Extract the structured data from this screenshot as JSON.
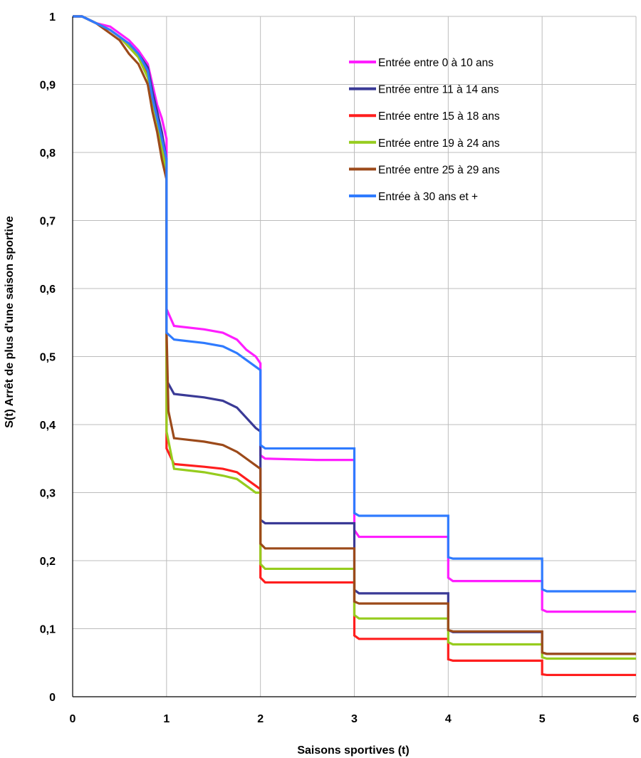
{
  "chart_data": {
    "type": "line",
    "title": "",
    "xlabel": "Saisons sportives (t)",
    "ylabel": "S(t) Arrêt de plus d'une saison sportive",
    "xlim": [
      0,
      6
    ],
    "ylim": [
      0,
      1
    ],
    "x_ticks": [
      "0",
      "1",
      "2",
      "3",
      "4",
      "5",
      "6"
    ],
    "y_ticks": [
      "0",
      "0,1",
      "0,2",
      "0,3",
      "0,4",
      "0,5",
      "0,6",
      "0,7",
      "0,8",
      "0,9",
      "1"
    ],
    "grid": true,
    "legend_position": "top-right",
    "series": [
      {
        "name": "Entrée entre 0 à 10 ans",
        "color": "#ff1eff",
        "points": [
          [
            0,
            1
          ],
          [
            0.1,
            1
          ],
          [
            0.25,
            0.99
          ],
          [
            0.4,
            0.985
          ],
          [
            0.5,
            0.975
          ],
          [
            0.6,
            0.965
          ],
          [
            0.7,
            0.95
          ],
          [
            0.8,
            0.93
          ],
          [
            0.85,
            0.9
          ],
          [
            0.9,
            0.87
          ],
          [
            0.95,
            0.85
          ],
          [
            1.0,
            0.82
          ],
          [
            1.0,
            0.57
          ],
          [
            1.08,
            0.545
          ],
          [
            1.4,
            0.54
          ],
          [
            1.6,
            0.535
          ],
          [
            1.75,
            0.525
          ],
          [
            1.85,
            0.51
          ],
          [
            1.95,
            0.5
          ],
          [
            2.0,
            0.49
          ],
          [
            2.0,
            0.355
          ],
          [
            2.05,
            0.35
          ],
          [
            2.6,
            0.348
          ],
          [
            3.0,
            0.348
          ],
          [
            3.0,
            0.245
          ],
          [
            3.05,
            0.235
          ],
          [
            4.0,
            0.235
          ],
          [
            4.0,
            0.175
          ],
          [
            4.05,
            0.17
          ],
          [
            5.0,
            0.17
          ],
          [
            5.0,
            0.128
          ],
          [
            5.05,
            0.125
          ],
          [
            6.0,
            0.125
          ]
        ]
      },
      {
        "name": "Entrée entre 11 à 14 ans",
        "color": "#3a3a96",
        "points": [
          [
            0,
            1
          ],
          [
            0.1,
            1
          ],
          [
            0.25,
            0.99
          ],
          [
            0.4,
            0.98
          ],
          [
            0.5,
            0.97
          ],
          [
            0.6,
            0.96
          ],
          [
            0.7,
            0.945
          ],
          [
            0.8,
            0.925
          ],
          [
            0.85,
            0.89
          ],
          [
            0.9,
            0.86
          ],
          [
            0.95,
            0.83
          ],
          [
            1.0,
            0.79
          ],
          [
            1.0,
            0.465
          ],
          [
            1.08,
            0.445
          ],
          [
            1.4,
            0.44
          ],
          [
            1.6,
            0.435
          ],
          [
            1.75,
            0.425
          ],
          [
            1.85,
            0.41
          ],
          [
            1.95,
            0.395
          ],
          [
            2.0,
            0.39
          ],
          [
            2.0,
            0.26
          ],
          [
            2.05,
            0.255
          ],
          [
            3.0,
            0.255
          ],
          [
            3.0,
            0.157
          ],
          [
            3.05,
            0.152
          ],
          [
            4.0,
            0.152
          ],
          [
            4.0,
            0.098
          ],
          [
            4.05,
            0.095
          ],
          [
            5.0,
            0.095
          ],
          [
            5.0,
            0.065
          ],
          [
            5.05,
            0.063
          ],
          [
            6.0,
            0.063
          ]
        ]
      },
      {
        "name": "Entrée entre 15 à 18 ans",
        "color": "#ff1e1e",
        "points": [
          [
            0,
            1
          ],
          [
            0.1,
            1
          ],
          [
            0.25,
            0.99
          ],
          [
            0.4,
            0.98
          ],
          [
            0.5,
            0.97
          ],
          [
            0.6,
            0.955
          ],
          [
            0.7,
            0.94
          ],
          [
            0.8,
            0.915
          ],
          [
            0.85,
            0.88
          ],
          [
            0.9,
            0.85
          ],
          [
            0.95,
            0.81
          ],
          [
            1.0,
            0.77
          ],
          [
            1.0,
            0.365
          ],
          [
            1.08,
            0.342
          ],
          [
            1.4,
            0.338
          ],
          [
            1.6,
            0.335
          ],
          [
            1.75,
            0.33
          ],
          [
            1.85,
            0.32
          ],
          [
            1.95,
            0.31
          ],
          [
            2.0,
            0.305
          ],
          [
            2.0,
            0.175
          ],
          [
            2.05,
            0.168
          ],
          [
            3.0,
            0.168
          ],
          [
            3.0,
            0.09
          ],
          [
            3.05,
            0.085
          ],
          [
            4.0,
            0.085
          ],
          [
            4.0,
            0.055
          ],
          [
            4.05,
            0.053
          ],
          [
            5.0,
            0.053
          ],
          [
            5.0,
            0.033
          ],
          [
            5.05,
            0.032
          ],
          [
            6.0,
            0.032
          ]
        ]
      },
      {
        "name": "Entrée entre 19 à 24 ans",
        "color": "#96cc1e",
        "points": [
          [
            0,
            1
          ],
          [
            0.1,
            1
          ],
          [
            0.25,
            0.99
          ],
          [
            0.4,
            0.98
          ],
          [
            0.5,
            0.97
          ],
          [
            0.6,
            0.955
          ],
          [
            0.7,
            0.94
          ],
          [
            0.8,
            0.91
          ],
          [
            0.85,
            0.875
          ],
          [
            0.9,
            0.845
          ],
          [
            0.95,
            0.805
          ],
          [
            1.0,
            0.77
          ],
          [
            1.0,
            0.39
          ],
          [
            1.08,
            0.335
          ],
          [
            1.4,
            0.33
          ],
          [
            1.6,
            0.325
          ],
          [
            1.75,
            0.32
          ],
          [
            1.85,
            0.31
          ],
          [
            1.95,
            0.3
          ],
          [
            2.0,
            0.3
          ],
          [
            2.0,
            0.195
          ],
          [
            2.05,
            0.188
          ],
          [
            3.0,
            0.188
          ],
          [
            3.0,
            0.12
          ],
          [
            3.05,
            0.115
          ],
          [
            4.0,
            0.115
          ],
          [
            4.0,
            0.08
          ],
          [
            4.05,
            0.077
          ],
          [
            5.0,
            0.077
          ],
          [
            5.0,
            0.058
          ],
          [
            5.05,
            0.056
          ],
          [
            6.0,
            0.056
          ]
        ]
      },
      {
        "name": "Entrée entre 25 à 29 ans",
        "color": "#9c4a1a",
        "points": [
          [
            0,
            1
          ],
          [
            0.1,
            1
          ],
          [
            0.25,
            0.99
          ],
          [
            0.4,
            0.975
          ],
          [
            0.5,
            0.965
          ],
          [
            0.6,
            0.945
          ],
          [
            0.7,
            0.93
          ],
          [
            0.8,
            0.9
          ],
          [
            0.85,
            0.86
          ],
          [
            0.9,
            0.83
          ],
          [
            0.95,
            0.79
          ],
          [
            1.0,
            0.76
          ],
          [
            1.0,
            0.54
          ],
          [
            1.02,
            0.42
          ],
          [
            1.08,
            0.38
          ],
          [
            1.4,
            0.375
          ],
          [
            1.6,
            0.37
          ],
          [
            1.75,
            0.36
          ],
          [
            1.85,
            0.35
          ],
          [
            1.95,
            0.34
          ],
          [
            2.0,
            0.335
          ],
          [
            2.0,
            0.225
          ],
          [
            2.05,
            0.218
          ],
          [
            3.0,
            0.218
          ],
          [
            3.0,
            0.14
          ],
          [
            3.05,
            0.137
          ],
          [
            4.0,
            0.137
          ],
          [
            4.0,
            0.098
          ],
          [
            4.05,
            0.096
          ],
          [
            5.0,
            0.096
          ],
          [
            5.0,
            0.065
          ],
          [
            5.05,
            0.063
          ],
          [
            6.0,
            0.063
          ]
        ]
      },
      {
        "name": "Entrée à 30 ans et +",
        "color": "#2f7bff",
        "points": [
          [
            0,
            1
          ],
          [
            0.1,
            1
          ],
          [
            0.25,
            0.99
          ],
          [
            0.4,
            0.98
          ],
          [
            0.5,
            0.97
          ],
          [
            0.6,
            0.96
          ],
          [
            0.7,
            0.945
          ],
          [
            0.8,
            0.92
          ],
          [
            0.85,
            0.88
          ],
          [
            0.9,
            0.85
          ],
          [
            0.95,
            0.82
          ],
          [
            1.0,
            0.79
          ],
          [
            1.0,
            0.535
          ],
          [
            1.08,
            0.525
          ],
          [
            1.4,
            0.52
          ],
          [
            1.6,
            0.515
          ],
          [
            1.75,
            0.505
          ],
          [
            1.85,
            0.495
          ],
          [
            1.95,
            0.485
          ],
          [
            2.0,
            0.48
          ],
          [
            2.0,
            0.37
          ],
          [
            2.05,
            0.365
          ],
          [
            3.0,
            0.365
          ],
          [
            3.0,
            0.27
          ],
          [
            3.05,
            0.266
          ],
          [
            4.0,
            0.266
          ],
          [
            4.0,
            0.205
          ],
          [
            4.05,
            0.203
          ],
          [
            5.0,
            0.203
          ],
          [
            5.0,
            0.158
          ],
          [
            5.05,
            0.155
          ],
          [
            6.0,
            0.155
          ]
        ]
      }
    ]
  }
}
